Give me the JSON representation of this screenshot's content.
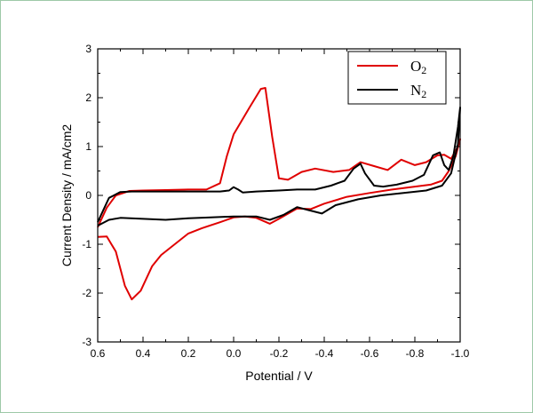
{
  "chart_data": {
    "type": "line",
    "xlabel": "Potential  /  V",
    "ylabel": "Current Density / mA/cm2",
    "xlim": [
      0.6,
      -1.0
    ],
    "ylim": [
      -3,
      3
    ],
    "x_ticks": [
      "0.6",
      "0.4",
      "0.2",
      "0.0",
      "-0.2",
      "-0.4",
      "-0.6",
      "-0.8",
      "-1.0"
    ],
    "x_tick_values": [
      0.6,
      0.4,
      0.2,
      0.0,
      -0.2,
      -0.4,
      -0.6,
      -0.8,
      -1.0
    ],
    "y_ticks": [
      "3",
      "2",
      "1",
      "0",
      "-1",
      "-2",
      "-3"
    ],
    "y_tick_values": [
      3,
      2,
      1,
      0,
      -1,
      -2,
      -3
    ],
    "grid": false,
    "legend_position": "top-right",
    "series": [
      {
        "name": "O2",
        "name_base": "O",
        "name_sub": "2",
        "color": "#e00000",
        "points": [
          [
            0.6,
            -0.85
          ],
          [
            0.56,
            -0.84
          ],
          [
            0.52,
            -1.15
          ],
          [
            0.48,
            -1.85
          ],
          [
            0.45,
            -2.13
          ],
          [
            0.41,
            -1.95
          ],
          [
            0.36,
            -1.45
          ],
          [
            0.32,
            -1.22
          ],
          [
            0.26,
            -1.0
          ],
          [
            0.2,
            -0.78
          ],
          [
            0.14,
            -0.67
          ],
          [
            0.06,
            -0.55
          ],
          [
            0.0,
            -0.45
          ],
          [
            -0.05,
            -0.43
          ],
          [
            -0.1,
            -0.46
          ],
          [
            -0.16,
            -0.58
          ],
          [
            -0.2,
            -0.48
          ],
          [
            -0.28,
            -0.27
          ],
          [
            -0.34,
            -0.28
          ],
          [
            -0.4,
            -0.17
          ],
          [
            -0.5,
            -0.03
          ],
          [
            -0.6,
            0.05
          ],
          [
            -0.7,
            0.12
          ],
          [
            -0.8,
            0.18
          ],
          [
            -0.87,
            0.22
          ],
          [
            -0.92,
            0.3
          ],
          [
            -0.95,
            0.5
          ],
          [
            -0.98,
            0.8
          ],
          [
            -1.0,
            1.15
          ],
          [
            -0.99,
            1.0
          ],
          [
            -0.96,
            0.75
          ],
          [
            -0.93,
            0.83
          ],
          [
            -0.9,
            0.82
          ],
          [
            -0.85,
            0.68
          ],
          [
            -0.8,
            0.62
          ],
          [
            -0.74,
            0.73
          ],
          [
            -0.68,
            0.52
          ],
          [
            -0.62,
            0.6
          ],
          [
            -0.56,
            0.68
          ],
          [
            -0.51,
            0.52
          ],
          [
            -0.44,
            0.48
          ],
          [
            -0.36,
            0.55
          ],
          [
            -0.3,
            0.48
          ],
          [
            -0.24,
            0.32
          ],
          [
            -0.2,
            0.35
          ],
          [
            -0.17,
            1.2
          ],
          [
            -0.14,
            2.2
          ],
          [
            -0.12,
            2.18
          ],
          [
            -0.07,
            1.8
          ],
          [
            0.0,
            1.25
          ],
          [
            0.03,
            0.8
          ],
          [
            0.06,
            0.25
          ],
          [
            0.12,
            0.12
          ],
          [
            0.2,
            0.12
          ],
          [
            0.3,
            0.11
          ],
          [
            0.4,
            0.1
          ],
          [
            0.46,
            0.09
          ],
          [
            0.52,
            0.0
          ],
          [
            0.56,
            -0.25
          ],
          [
            0.6,
            -0.65
          ]
        ]
      },
      {
        "name": "N2",
        "name_base": "N",
        "name_sub": "2",
        "color": "#000000",
        "points": [
          [
            0.6,
            -0.62
          ],
          [
            0.55,
            -0.5
          ],
          [
            0.5,
            -0.46
          ],
          [
            0.4,
            -0.48
          ],
          [
            0.3,
            -0.5
          ],
          [
            0.2,
            -0.47
          ],
          [
            0.1,
            -0.45
          ],
          [
            0.0,
            -0.43
          ],
          [
            -0.1,
            -0.43
          ],
          [
            -0.16,
            -0.5
          ],
          [
            -0.22,
            -0.4
          ],
          [
            -0.28,
            -0.24
          ],
          [
            -0.33,
            -0.3
          ],
          [
            -0.39,
            -0.37
          ],
          [
            -0.45,
            -0.2
          ],
          [
            -0.55,
            -0.08
          ],
          [
            -0.65,
            0.0
          ],
          [
            -0.75,
            0.05
          ],
          [
            -0.85,
            0.1
          ],
          [
            -0.92,
            0.2
          ],
          [
            -0.96,
            0.45
          ],
          [
            -0.99,
            1.05
          ],
          [
            -1.0,
            1.8
          ],
          [
            -0.99,
            1.4
          ],
          [
            -0.97,
            0.8
          ],
          [
            -0.95,
            0.52
          ],
          [
            -0.93,
            0.62
          ],
          [
            -0.91,
            0.88
          ],
          [
            -0.88,
            0.82
          ],
          [
            -0.84,
            0.42
          ],
          [
            -0.79,
            0.3
          ],
          [
            -0.72,
            0.22
          ],
          [
            -0.66,
            0.18
          ],
          [
            -0.62,
            0.2
          ],
          [
            -0.58,
            0.45
          ],
          [
            -0.56,
            0.65
          ],
          [
            -0.53,
            0.55
          ],
          [
            -0.49,
            0.3
          ],
          [
            -0.43,
            0.2
          ],
          [
            -0.36,
            0.12
          ],
          [
            -0.28,
            0.12
          ],
          [
            -0.2,
            0.1
          ],
          [
            -0.1,
            0.08
          ],
          [
            -0.04,
            0.06
          ],
          [
            -0.02,
            0.12
          ],
          [
            0.0,
            0.17
          ],
          [
            0.02,
            0.1
          ],
          [
            0.06,
            0.08
          ],
          [
            0.2,
            0.08
          ],
          [
            0.35,
            0.08
          ],
          [
            0.45,
            0.08
          ],
          [
            0.5,
            0.07
          ],
          [
            0.55,
            -0.05
          ],
          [
            0.6,
            -0.55
          ]
        ]
      }
    ]
  }
}
